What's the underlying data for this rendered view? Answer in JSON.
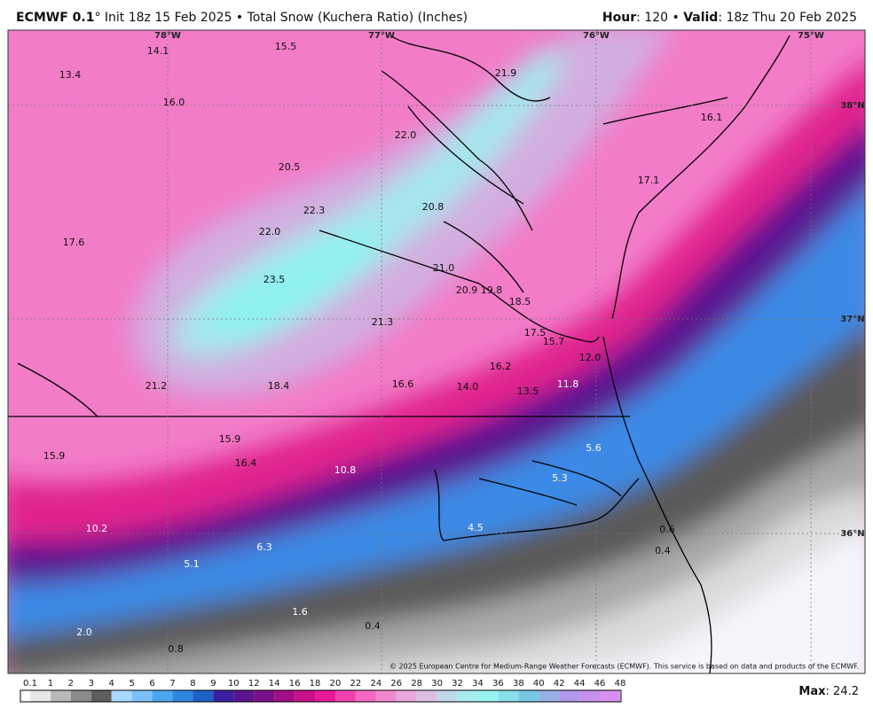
{
  "header": {
    "model": "ECMWF 0.1",
    "subtitle": "° Init 18z 15 Feb 2025 • Total Snow (Kuchera Ratio) (Inches)",
    "hour_label": "Hour",
    "hour_value": ": 120 • ",
    "valid_label": "Valid",
    "valid_value": ": 18z Thu 20 Feb 2025"
  },
  "map": {
    "grid_labels": [
      "78°W",
      "77°W",
      "76°W",
      "75°W",
      "38°N",
      "37°N",
      "36°N"
    ],
    "values": [
      "14.1",
      "15.5",
      "13.4",
      "21.9",
      "16.0",
      "16.1",
      "22.0",
      "20.5",
      "17.1",
      "22.3",
      "20.8",
      "22.0",
      "17.6",
      "21.0",
      "23.5",
      "20.9",
      "19.8",
      "18.5",
      "21.3",
      "17.5",
      "15.7",
      "12.0",
      "16.2",
      "21.2",
      "18.4",
      "16.6",
      "14.0",
      "13.5",
      "11.8",
      "15.9",
      "15.9",
      "16.4",
      "5.6",
      "10.8",
      "5.3",
      "4.5",
      "10.2",
      "0.6",
      "6.3",
      "0.4",
      "5.1",
      "1.6",
      "0.4",
      "2.0",
      "0.8"
    ],
    "copyright": "© 2025 European Centre for Medium-Range Weather Forecasts (ECMWF). This service is based on data and products of the ECMWF."
  },
  "colorbar": {
    "labels": [
      "0.1",
      "1",
      "2",
      "3",
      "4",
      "5",
      "6",
      "7",
      "8",
      "9",
      "10",
      "12",
      "14",
      "16",
      "18",
      "20",
      "22",
      "24",
      "26",
      "28",
      "30",
      "32",
      "34",
      "36",
      "38",
      "40",
      "42",
      "44",
      "46",
      "48"
    ],
    "colors": [
      "#e8e8e8",
      "#b8b8b8",
      "#8a8a8a",
      "#5e5e5e",
      "#a8d8ff",
      "#7cc0f8",
      "#4da6f0",
      "#2e86e0",
      "#1f5fc8",
      "#3a1fa0",
      "#5a1490",
      "#7a108a",
      "#a00e88",
      "#c8108c",
      "#e8189a",
      "#f040b0",
      "#f468c4",
      "#f088d0",
      "#e8a8dc",
      "#d8c0e4",
      "#c0d8ec",
      "#a8ecf0",
      "#98f4f0",
      "#88e0ec",
      "#78c8e4",
      "#98b0e8",
      "#b098ec",
      "#c890ee",
      "#d890f0"
    ]
  },
  "footer": {
    "max_label": "Max",
    "max_value": ": 24.2"
  }
}
